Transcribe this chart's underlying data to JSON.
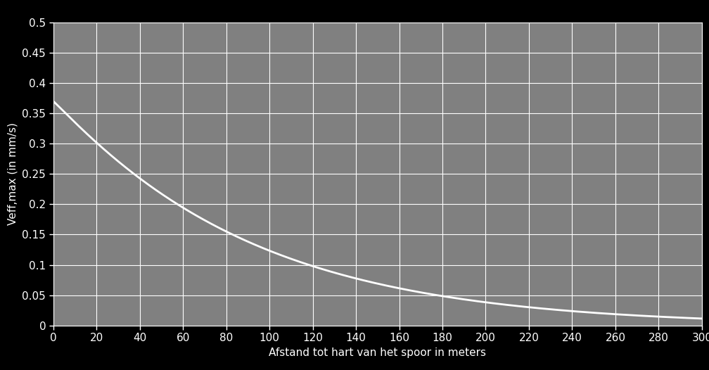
{
  "title": "",
  "xlabel": "Afstand tot hart van het spoor in meters",
  "ylabel": "Veff,max (in mm/s)",
  "xlim": [
    0,
    300
  ],
  "ylim": [
    0,
    0.5
  ],
  "xticks": [
    0,
    20,
    40,
    60,
    80,
    100,
    120,
    140,
    160,
    180,
    200,
    220,
    240,
    260,
    280,
    300
  ],
  "yticks": [
    0,
    0.05,
    0.1,
    0.15,
    0.2,
    0.25,
    0.3,
    0.35,
    0.4,
    0.45,
    0.5
  ],
  "plot_bg_color": "#808080",
  "outer_bg_color": "#000000",
  "line_color": "#ffffff",
  "grid_color": "#ffffff",
  "text_color": "#ffffff",
  "line_width": 2.0,
  "curve_A": 2.8,
  "curve_c": 5.5,
  "curve_n": 0.72,
  "font_size": 11
}
